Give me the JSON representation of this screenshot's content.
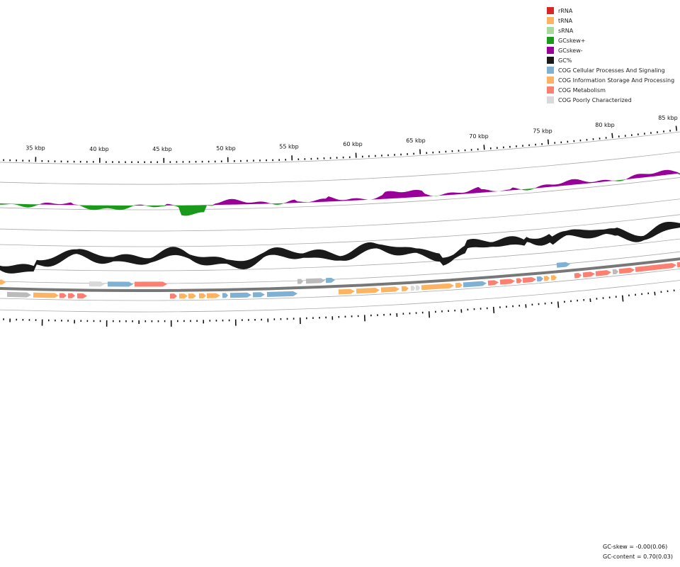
{
  "legend": {
    "items": [
      {
        "label": "rRNA",
        "color": "#d62728"
      },
      {
        "label": "tRNA",
        "color": "#fdb462"
      },
      {
        "label": "sRNA",
        "color": "#a6dba0"
      },
      {
        "label": "GCskew+",
        "color": "#1a9a1a"
      },
      {
        "label": "GCskew-",
        "color": "#990099"
      },
      {
        "label": "GC%",
        "color": "#1a1a1a"
      },
      {
        "label": "COG Cellular Processes And Signaling",
        "color": "#80b1d3"
      },
      {
        "label": "COG Information Storage And Processing",
        "color": "#fdb462"
      },
      {
        "label": "COG Metabolism",
        "color": "#fb8072"
      },
      {
        "label": "COG Poorly Characterized",
        "color": "#d9d9d9"
      }
    ]
  },
  "ticks": {
    "labels": [
      "35 kbp",
      "40 kbp",
      "45 kbp",
      "50 kbp",
      "55 kbp",
      "60 kbp",
      "65 kbp",
      "70 kbp",
      "75 kbp",
      "80 kbp",
      "85 kbp"
    ]
  },
  "stats": {
    "gc_skew": "GC-skew = -0.00(0.06)",
    "gc_content": "GC-content = 0.70(0.03)"
  },
  "colors": {
    "backbone": "#777777",
    "guide": "#aaaaaa",
    "gc": "#1a1a1a",
    "skew_pos": "#1a9a1a",
    "skew_neg": "#990099",
    "cog_cellular": "#80b1d3",
    "cog_info": "#fdb462",
    "cog_metab": "#fb8072",
    "cog_poor": "#d9d9d9",
    "hypothetical": "#bbbbbb"
  }
}
